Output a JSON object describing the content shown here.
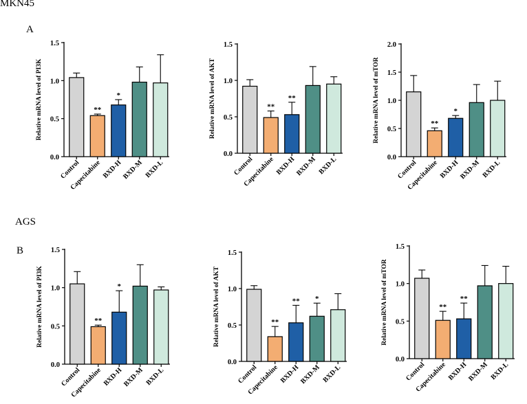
{
  "sections": {
    "top_cell_line": "MKN45",
    "top_panel": "A",
    "bottom_cell_line": "AGS",
    "bottom_panel": "B"
  },
  "colors": {
    "Control": "#d4d4d4",
    "Capecitabine": "#f3ad72",
    "BXD-H": "#1f5fa6",
    "BXD-M": "#4f8f86",
    "BXD-L": "#cfe9dd"
  },
  "chart_data": [
    {
      "type": "bar",
      "ylabel": "Relative mRNA level of PI3K",
      "categories": [
        "Control",
        "Capecitabine",
        "BXD-H",
        "BXD-M",
        "BXD-L"
      ],
      "values": [
        1.04,
        0.54,
        0.68,
        0.98,
        0.97
      ],
      "errors": [
        0.06,
        0.02,
        0.07,
        0.2,
        0.37
      ],
      "significance": [
        "",
        "**",
        "*",
        "",
        ""
      ],
      "ylim": [
        0,
        1.5
      ],
      "yticks": [
        "0.0",
        "0.5",
        "1.0",
        "1.5"
      ]
    },
    {
      "type": "bar",
      "ylabel": "Relative mRNA level of AKT",
      "categories": [
        "Control",
        "Capecitabine",
        "BXD-H",
        "BXD-M",
        "BXD-L"
      ],
      "values": [
        0.92,
        0.49,
        0.53,
        0.93,
        0.95
      ],
      "errors": [
        0.09,
        0.09,
        0.17,
        0.26,
        0.1
      ],
      "significance": [
        "",
        "**",
        "**",
        "",
        ""
      ],
      "ylim": [
        0,
        1.5
      ],
      "yticks": [
        "0.0",
        "0.5",
        "1.0",
        "1.5"
      ]
    },
    {
      "type": "bar",
      "ylabel": "Relative mRNA level of mTOR",
      "categories": [
        "Control",
        "Capecitabine",
        "BXD-H",
        "BXD-M",
        "BXD-L"
      ],
      "values": [
        1.15,
        0.46,
        0.68,
        0.96,
        1.0
      ],
      "errors": [
        0.29,
        0.05,
        0.05,
        0.32,
        0.34
      ],
      "significance": [
        "",
        "**",
        "*",
        "",
        ""
      ],
      "ylim": [
        0,
        2.0
      ],
      "yticks": [
        "0.0",
        "0.5",
        "1.0",
        "1.5",
        "2.0"
      ]
    },
    {
      "type": "bar",
      "ylabel": "Relative mRNA level of PI3K",
      "categories": [
        "Control",
        "Capecitabine",
        "BXD-H",
        "BXD-M",
        "BXD-L"
      ],
      "values": [
        1.05,
        0.49,
        0.68,
        1.02,
        0.97
      ],
      "errors": [
        0.16,
        0.02,
        0.28,
        0.28,
        0.04
      ],
      "significance": [
        "",
        "**",
        "*",
        "",
        ""
      ],
      "ylim": [
        0,
        1.5
      ],
      "yticks": [
        "0.0",
        "0.5",
        "1.0",
        "1.5"
      ]
    },
    {
      "type": "bar",
      "ylabel": "Relative mRNA level of AKT",
      "categories": [
        "Control",
        "Capecitabine",
        "BXD-H",
        "BXD-M",
        "BXD-L"
      ],
      "values": [
        0.99,
        0.34,
        0.53,
        0.62,
        0.71
      ],
      "errors": [
        0.05,
        0.14,
        0.24,
        0.18,
        0.22
      ],
      "significance": [
        "",
        "**",
        "**",
        "*",
        ""
      ],
      "ylim": [
        0,
        1.5
      ],
      "yticks": [
        "0.0",
        "0.5",
        "1.0",
        "1.5"
      ]
    },
    {
      "type": "bar",
      "ylabel": "Relative mRNA level of mTOR",
      "categories": [
        "Control",
        "Capecitabine",
        "BXD-H",
        "BXD-M",
        "BXD-L"
      ],
      "values": [
        1.07,
        0.51,
        0.53,
        0.97,
        1.0
      ],
      "errors": [
        0.11,
        0.12,
        0.21,
        0.27,
        0.23
      ],
      "significance": [
        "",
        "**",
        "**",
        "",
        ""
      ],
      "ylim": [
        0,
        1.5
      ],
      "yticks": [
        "0.0",
        "0.5",
        "1.0",
        "1.5"
      ]
    }
  ]
}
